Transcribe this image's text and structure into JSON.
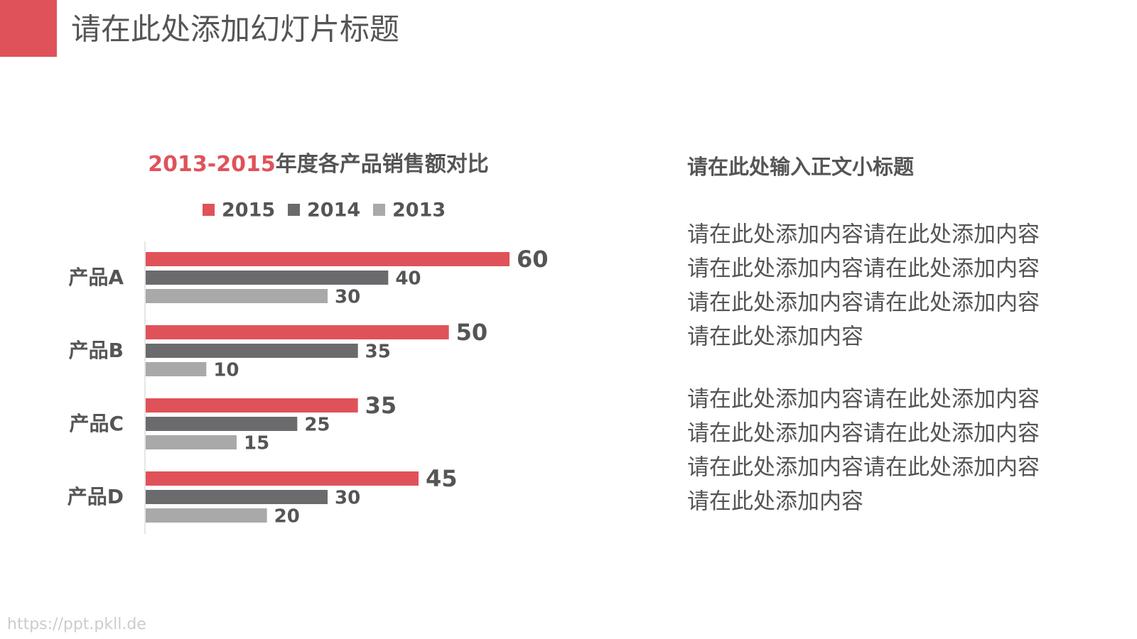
{
  "header": {
    "title": "请在此处添加幻灯片标题"
  },
  "chart_data": {
    "type": "hbar",
    "title": [
      "2013-2015",
      "年度各产品销售额对比"
    ],
    "categories": [
      "产品A",
      "产品B",
      "产品C",
      "产品D"
    ],
    "series": [
      {
        "name": "2015",
        "color": "#e0525a",
        "values": [
          60,
          50,
          35,
          45
        ]
      },
      {
        "name": "2014",
        "color": "#6b6b6d",
        "values": [
          40,
          35,
          25,
          30
        ]
      },
      {
        "name": "2013",
        "color": "#a9a9a9",
        "values": [
          30,
          10,
          15,
          20
        ]
      }
    ],
    "xlim": [
      0,
      60
    ],
    "title_color": "#e0525a"
  },
  "text": {
    "subtitle": "请在此处输入正文小标题",
    "paragraphs": [
      [
        "请在此处添加内容请在此处添加内容",
        "请在此处添加内容请在此处添加内容",
        "请在此处添加内容请在此处添加内容",
        "请在此处添加内容"
      ],
      [
        "请在此处添加内容请在此处添加内容",
        "请在此处添加内容请在此处添加内容",
        "请在此处添加内容请在此处添加内容",
        "请在此处添加内容"
      ]
    ]
  },
  "watermark": "https://ppt.pkll.de"
}
